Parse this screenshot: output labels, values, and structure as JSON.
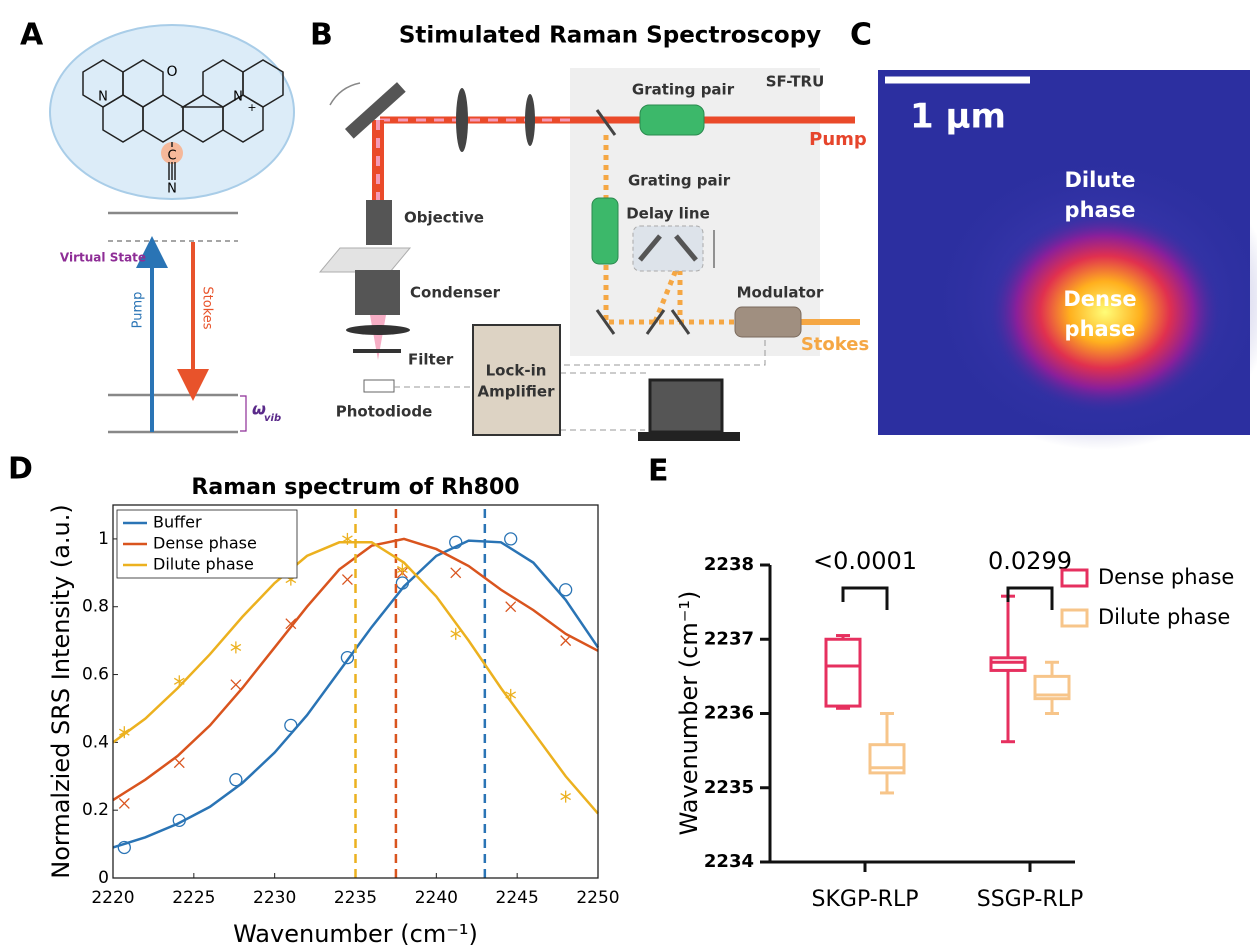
{
  "panel_labels": [
    "A",
    "B",
    "C",
    "D",
    "E"
  ],
  "panel_a": {
    "atoms": [
      "N",
      "O",
      "N",
      "+",
      "C",
      "N"
    ],
    "virtual_state": "Virtual State",
    "pump": "Pump",
    "stokes": "Stokes",
    "omega": "ω",
    "omega_subscript": "vib"
  },
  "panel_b": {
    "title": "Stimulated Raman Spectroscopy",
    "sf_tru": "SF-TRU",
    "grating_pair_top": "Grating pair",
    "pump": "Pump",
    "grating_pair_side": "Grating pair",
    "delay_line": "Delay line",
    "objective": "Objective",
    "condenser": "Condenser",
    "modulator": "Modulator",
    "stokes": "Stokes",
    "filter": "Filter",
    "lock_in": [
      "Lock-in",
      "Amplifier"
    ],
    "photodiode": "Photodiode"
  },
  "panel_c": {
    "scale_bar": "1 μm",
    "dilute": [
      "Dilute",
      "phase"
    ],
    "dense": [
      "Dense",
      "phase"
    ]
  },
  "chart_data": [
    {
      "type": "line",
      "title": "Raman spectrum of Rh800",
      "xlabel": "Wavenumber (cm⁻¹)",
      "ylabel": "Normalzied SRS Intensity (a.u.)",
      "xlim": [
        2220,
        2250
      ],
      "xticks": [
        2220,
        2225,
        2230,
        2235,
        2240,
        2245,
        2250
      ],
      "ylim": [
        0,
        1.1
      ],
      "yticks": [
        0,
        0.2,
        0.4,
        0.6,
        0.8,
        1
      ],
      "legend": "upper-left",
      "points_x": [
        2220.7,
        2224.1,
        2227.6,
        2231,
        2234.5,
        2237.9,
        2241.2,
        2244.6,
        2248
      ],
      "fit_x": [
        2220,
        2222,
        2224,
        2226,
        2228,
        2230,
        2232,
        2234,
        2236,
        2238,
        2240,
        2242,
        2244,
        2246,
        2248,
        2250
      ],
      "series": [
        {
          "name": "Buffer",
          "color": "#2a74b5",
          "marker": "circle",
          "peak": 2243,
          "values": [
            0.09,
            0.17,
            0.29,
            0.45,
            0.65,
            0.87,
            0.99,
            1.0,
            0.85
          ],
          "fit_values": [
            0.09,
            0.12,
            0.16,
            0.21,
            0.28,
            0.37,
            0.48,
            0.61,
            0.74,
            0.86,
            0.95,
            0.995,
            0.99,
            0.93,
            0.82,
            0.68
          ]
        },
        {
          "name": "Dense phase",
          "color": "#d9541e",
          "marker": "cross",
          "peak": 2237.5,
          "values": [
            0.22,
            0.34,
            0.57,
            0.75,
            0.88,
            0.9,
            0.9,
            0.8,
            0.7
          ],
          "fit_values": [
            0.23,
            0.29,
            0.36,
            0.45,
            0.56,
            0.68,
            0.8,
            0.91,
            0.98,
            1.0,
            0.97,
            0.92,
            0.85,
            0.79,
            0.72,
            0.67
          ]
        },
        {
          "name": "Dilute phase",
          "color": "#ecb11f",
          "marker": "star",
          "peak": 2235,
          "values": [
            0.43,
            0.58,
            0.68,
            0.88,
            1.0,
            0.91,
            0.72,
            0.54,
            0.24
          ],
          "fit_values": [
            0.4,
            0.47,
            0.56,
            0.66,
            0.77,
            0.87,
            0.95,
            0.99,
            0.99,
            0.93,
            0.83,
            0.7,
            0.56,
            0.43,
            0.3,
            0.19
          ]
        }
      ]
    },
    {
      "type": "box",
      "ylabel": "Wavenumber (cm⁻¹)",
      "categories": [
        "SKGP-RLP",
        "SSGP-RLP"
      ],
      "ylim": [
        2234,
        2238
      ],
      "yticks": [
        2234,
        2235,
        2236,
        2237,
        2238
      ],
      "legend": "upper-right",
      "series": [
        {
          "name": "Dense phase",
          "color": "#e6305f",
          "values": [
            {
              "min": 2236.07,
              "q1": 2236.1,
              "median": 2236.64,
              "q3": 2237.0,
              "max": 2237.05
            },
            {
              "min": 2235.62,
              "q1": 2236.58,
              "median": 2236.69,
              "q3": 2236.75,
              "max": 2237.58
            }
          ]
        },
        {
          "name": "Dilute phase",
          "color": "#f7c58a",
          "values": [
            {
              "min": 2234.93,
              "q1": 2235.2,
              "median": 2235.27,
              "q3": 2235.58,
              "max": 2236.0
            },
            {
              "min": 2236.0,
              "q1": 2236.2,
              "median": 2236.25,
              "q3": 2236.5,
              "max": 2236.69
            }
          ]
        }
      ],
      "annotations": [
        {
          "text": "<0.0001",
          "category": 0
        },
        {
          "text": "0.0299",
          "category": 1
        }
      ]
    }
  ]
}
